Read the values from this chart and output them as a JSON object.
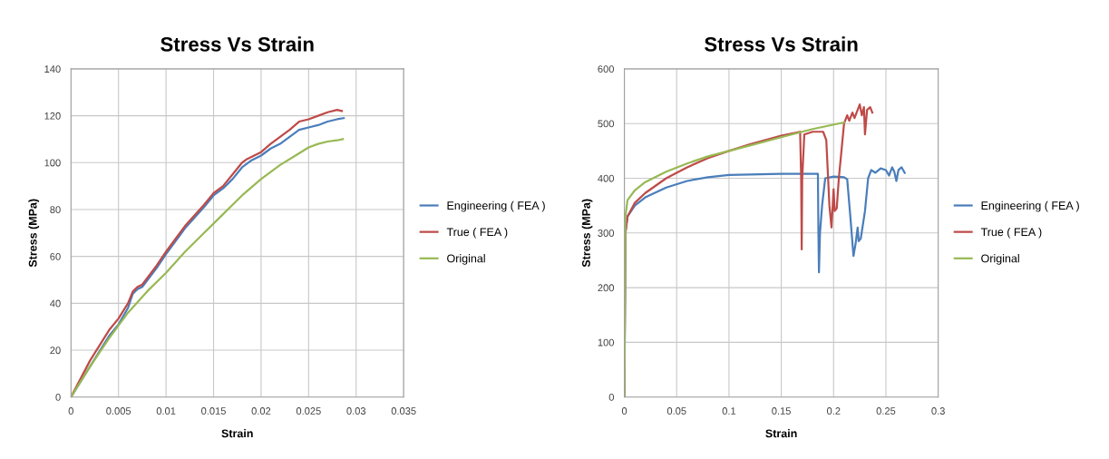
{
  "chart_data": [
    {
      "type": "line",
      "title": "Stress Vs Strain",
      "xlabel": "Strain",
      "ylabel": "Stress (MPa)",
      "xlim": [
        0,
        0.035
      ],
      "xticks": [
        0,
        0.005,
        0.01,
        0.015,
        0.02,
        0.025,
        0.03,
        0.035
      ],
      "ylim": [
        0,
        140
      ],
      "yticks": [
        0,
        20,
        40,
        60,
        80,
        100,
        120,
        140
      ],
      "grid": true,
      "legend": "right",
      "marker": "none",
      "line_style": "solid",
      "series": [
        {
          "name": "Engineering ( FEA )",
          "color": "#4a7ebb",
          "x": [
            0,
            0.002,
            0.004,
            0.005,
            0.006,
            0.0065,
            0.007,
            0.0075,
            0.009,
            0.01,
            0.012,
            0.014,
            0.015,
            0.016,
            0.017,
            0.018,
            0.019,
            0.02,
            0.021,
            0.022,
            0.023,
            0.024,
            0.025,
            0.026,
            0.027,
            0.028,
            0.0287
          ],
          "values": [
            0,
            13,
            26,
            31,
            38,
            44,
            46,
            47,
            55,
            61,
            72,
            81,
            86,
            89,
            93,
            98,
            101,
            103,
            106,
            108,
            111,
            114,
            115,
            116,
            117.5,
            118.5,
            119
          ]
        },
        {
          "name": "True ( FEA )",
          "color": "#be4b48",
          "x": [
            0,
            0.002,
            0.004,
            0.005,
            0.006,
            0.0065,
            0.007,
            0.0075,
            0.009,
            0.01,
            0.012,
            0.014,
            0.015,
            0.016,
            0.017,
            0.018,
            0.0185,
            0.02,
            0.021,
            0.022,
            0.023,
            0.024,
            0.025,
            0.026,
            0.027,
            0.028,
            0.0285
          ],
          "values": [
            0,
            15.5,
            28.5,
            33.5,
            40,
            45,
            47,
            48,
            56,
            62,
            73,
            82,
            87,
            90,
            95,
            100,
            101.5,
            104.5,
            108,
            111,
            114,
            117.5,
            118.5,
            120,
            121.5,
            122.5,
            122
          ]
        },
        {
          "name": "Original",
          "color": "#98b954",
          "x": [
            0,
            0.002,
            0.004,
            0.006,
            0.008,
            0.01,
            0.012,
            0.014,
            0.016,
            0.018,
            0.02,
            0.022,
            0.024,
            0.025,
            0.026,
            0.027,
            0.028,
            0.0286
          ],
          "values": [
            0,
            13,
            25,
            36,
            45,
            53,
            62,
            70,
            78,
            86,
            93,
            99,
            104,
            106.5,
            108,
            109,
            109.5,
            110
          ]
        }
      ]
    },
    {
      "type": "line",
      "title": "Stress Vs Strain",
      "xlabel": "Strain",
      "ylabel": "Stress (MPa)",
      "xlim": [
        0,
        0.3
      ],
      "xticks": [
        0,
        0.05,
        0.1,
        0.15,
        0.2,
        0.25,
        0.3
      ],
      "ylim": [
        0,
        600
      ],
      "yticks": [
        0,
        100,
        200,
        300,
        400,
        500,
        600
      ],
      "grid": true,
      "legend": "right",
      "marker": "none",
      "line_style": "solid",
      "series": [
        {
          "name": "Engineering ( FEA )",
          "color": "#4a7ebb",
          "x": [
            0,
            0.001,
            0.003,
            0.01,
            0.02,
            0.04,
            0.06,
            0.08,
            0.1,
            0.15,
            0.185,
            0.1855,
            0.186,
            0.187,
            0.189,
            0.192,
            0.2,
            0.21,
            0.213,
            0.216,
            0.219,
            0.221,
            0.223,
            0.224,
            0.226,
            0.23,
            0.233,
            0.236,
            0.24,
            0.245,
            0.25,
            0.253,
            0.256,
            0.258,
            0.26,
            0.262,
            0.265,
            0.268
          ],
          "values": [
            0,
            300,
            330,
            350,
            365,
            383,
            395,
            402,
            406,
            408,
            408,
            300,
            228,
            300,
            350,
            400,
            403,
            402,
            398,
            330,
            258,
            280,
            310,
            285,
            290,
            340,
            400,
            415,
            410,
            418,
            415,
            405,
            420,
            412,
            395,
            415,
            420,
            410
          ]
        },
        {
          "name": "True ( FEA )",
          "color": "#be4b48",
          "x": [
            0,
            0.001,
            0.003,
            0.01,
            0.02,
            0.04,
            0.06,
            0.08,
            0.1,
            0.12,
            0.15,
            0.168,
            0.169,
            0.1695,
            0.17,
            0.172,
            0.18,
            0.19,
            0.193,
            0.196,
            0.198,
            0.199,
            0.2,
            0.201,
            0.203,
            0.205,
            0.208,
            0.21,
            0.213,
            0.215,
            0.218,
            0.22,
            0.223,
            0.225,
            0.227,
            0.229,
            0.23,
            0.232,
            0.235,
            0.237
          ],
          "values": [
            0,
            300,
            330,
            355,
            373,
            400,
            420,
            437,
            450,
            462,
            478,
            485,
            400,
            270,
            400,
            480,
            485,
            485,
            470,
            350,
            310,
            345,
            380,
            340,
            345,
            400,
            460,
            500,
            515,
            505,
            520,
            510,
            525,
            535,
            515,
            530,
            480,
            525,
            530,
            520
          ]
        },
        {
          "name": "Original",
          "color": "#98b954",
          "x": [
            0,
            0.001,
            0.003,
            0.01,
            0.02,
            0.04,
            0.06,
            0.08,
            0.1,
            0.12,
            0.15,
            0.18,
            0.21
          ],
          "values": [
            0,
            330,
            360,
            378,
            393,
            412,
            427,
            440,
            450,
            460,
            475,
            490,
            502
          ]
        }
      ]
    }
  ]
}
